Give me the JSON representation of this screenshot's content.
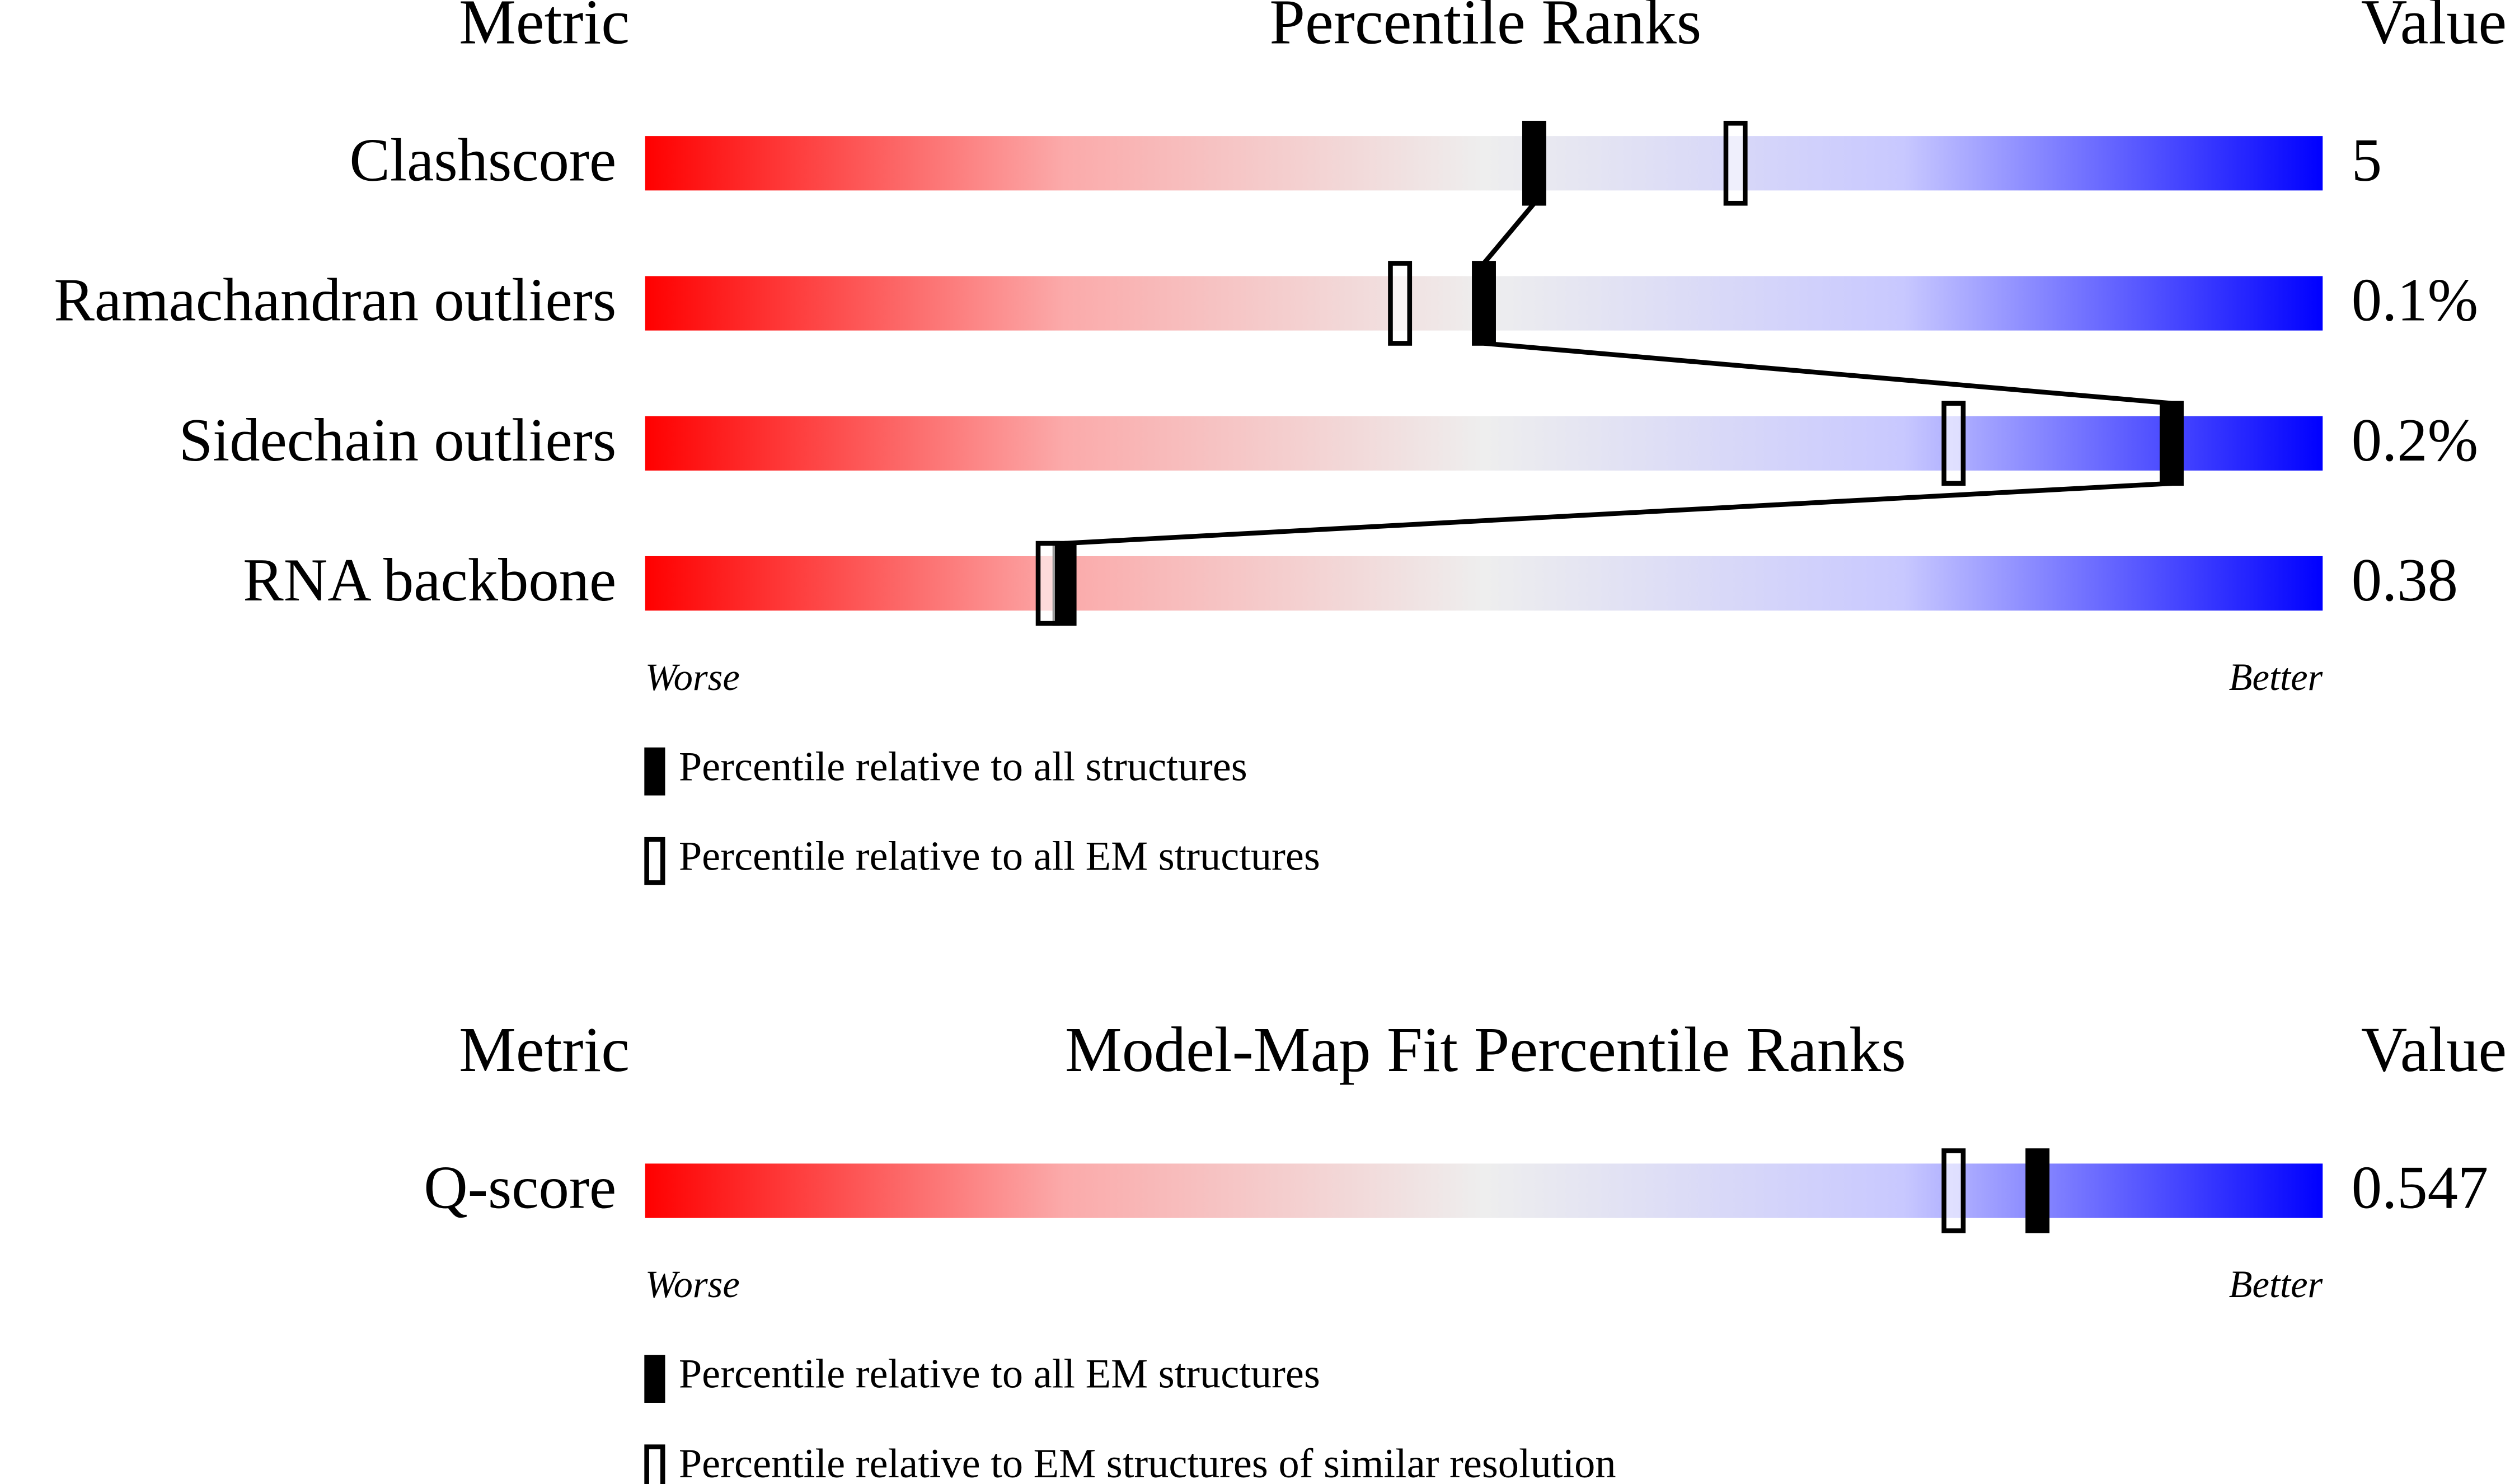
{
  "chart_data": [
    {
      "type": "percentile",
      "title": "Percentile Ranks",
      "metric_header": "Metric",
      "value_header": "Value",
      "rows": [
        "Clashscore",
        "Ramachandran outliers",
        "Sidechain outliers",
        "RNA backbone"
      ],
      "row_values": [
        "5",
        "0.1%",
        "0.2%",
        "0.38"
      ],
      "xlim": [
        0,
        100
      ],
      "low_label": "Worse",
      "high_label": "Better",
      "series": [
        {
          "name": "Percentile relative to all structures",
          "marker": "filled",
          "color": "#000000",
          "connect": true,
          "values": [
            53,
            50,
            91,
            25
          ]
        },
        {
          "name": "Percentile relative to all EM structures",
          "marker": "open",
          "color": "#000000",
          "connect": false,
          "values": [
            65,
            45,
            78,
            24
          ]
        }
      ]
    },
    {
      "type": "percentile",
      "title": "Model-Map Fit Percentile Ranks",
      "metric_header": "Metric",
      "value_header": "Value",
      "rows": [
        "Q-score"
      ],
      "row_values": [
        "0.547"
      ],
      "xlim": [
        0,
        100
      ],
      "low_label": "Worse",
      "high_label": "Better",
      "series": [
        {
          "name": "Percentile relative to all EM structures",
          "marker": "filled",
          "color": "#000000",
          "connect": true,
          "values": [
            83
          ]
        },
        {
          "name": "Percentile relative to EM structures of similar resolution",
          "marker": "open",
          "color": "#000000",
          "connect": false,
          "values": [
            78
          ]
        }
      ]
    }
  ]
}
